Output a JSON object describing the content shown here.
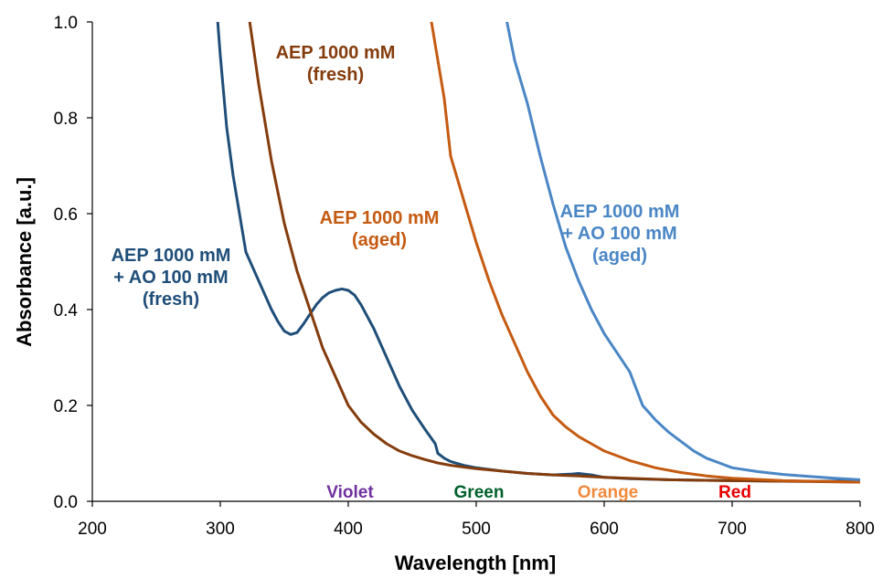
{
  "chart_data": {
    "type": "line",
    "xlabel": "Wavelength [nm]",
    "ylabel": "Absorbance [a.u.]",
    "xlim": [
      200,
      800
    ],
    "ylim": [
      0,
      1.0
    ],
    "x_ticks": [
      "200",
      "300",
      "400",
      "500",
      "600",
      "700",
      "800"
    ],
    "y_ticks": [
      "0.0",
      "0.2",
      "0.4",
      "0.6",
      "0.8",
      "1.0"
    ],
    "grid": false,
    "legend": "none",
    "series": [
      {
        "name": "AEP 1000 mM + AO 100 mM (fresh)",
        "color": "#1F4E79",
        "points": [
          [
            298,
            1.0
          ],
          [
            300,
            0.93
          ],
          [
            305,
            0.78
          ],
          [
            310,
            0.68
          ],
          [
            315,
            0.6
          ],
          [
            320,
            0.52
          ],
          [
            325,
            0.49
          ],
          [
            330,
            0.46
          ],
          [
            335,
            0.43
          ],
          [
            340,
            0.4
          ],
          [
            345,
            0.375
          ],
          [
            350,
            0.355
          ],
          [
            355,
            0.348
          ],
          [
            360,
            0.352
          ],
          [
            365,
            0.37
          ],
          [
            370,
            0.39
          ],
          [
            375,
            0.41
          ],
          [
            380,
            0.425
          ],
          [
            385,
            0.435
          ],
          [
            390,
            0.44
          ],
          [
            395,
            0.443
          ],
          [
            400,
            0.44
          ],
          [
            405,
            0.43
          ],
          [
            410,
            0.41
          ],
          [
            420,
            0.36
          ],
          [
            430,
            0.3
          ],
          [
            440,
            0.24
          ],
          [
            450,
            0.19
          ],
          [
            460,
            0.15
          ],
          [
            468,
            0.12
          ],
          [
            470,
            0.1
          ],
          [
            475,
            0.09
          ],
          [
            480,
            0.083
          ],
          [
            490,
            0.075
          ],
          [
            500,
            0.07
          ],
          [
            520,
            0.063
          ],
          [
            540,
            0.058
          ],
          [
            560,
            0.055
          ],
          [
            575,
            0.057
          ],
          [
            580,
            0.058
          ],
          [
            590,
            0.055
          ],
          [
            600,
            0.05
          ],
          [
            620,
            0.047
          ],
          [
            650,
            0.045
          ],
          [
            700,
            0.043
          ],
          [
            750,
            0.042
          ],
          [
            800,
            0.042
          ]
        ]
      },
      {
        "name": "AEP 1000 mM (fresh)",
        "color": "#843C0C",
        "points": [
          [
            323,
            1.0
          ],
          [
            330,
            0.87
          ],
          [
            340,
            0.71
          ],
          [
            350,
            0.58
          ],
          [
            360,
            0.48
          ],
          [
            370,
            0.4
          ],
          [
            380,
            0.32
          ],
          [
            390,
            0.26
          ],
          [
            400,
            0.2
          ],
          [
            410,
            0.165
          ],
          [
            420,
            0.14
          ],
          [
            430,
            0.12
          ],
          [
            440,
            0.105
          ],
          [
            450,
            0.095
          ],
          [
            460,
            0.087
          ],
          [
            470,
            0.08
          ],
          [
            480,
            0.075
          ],
          [
            500,
            0.068
          ],
          [
            520,
            0.063
          ],
          [
            540,
            0.058
          ],
          [
            560,
            0.055
          ],
          [
            580,
            0.053
          ],
          [
            600,
            0.05
          ],
          [
            650,
            0.045
          ],
          [
            700,
            0.043
          ],
          [
            800,
            0.04
          ]
        ]
      },
      {
        "name": "AEP 1000 mM (aged)",
        "color": "#C55A11",
        "points": [
          [
            465,
            1.0
          ],
          [
            470,
            0.92
          ],
          [
            475,
            0.84
          ],
          [
            480,
            0.72
          ],
          [
            490,
            0.63
          ],
          [
            500,
            0.54
          ],
          [
            510,
            0.46
          ],
          [
            520,
            0.39
          ],
          [
            530,
            0.33
          ],
          [
            540,
            0.27
          ],
          [
            550,
            0.22
          ],
          [
            560,
            0.18
          ],
          [
            570,
            0.155
          ],
          [
            580,
            0.135
          ],
          [
            590,
            0.12
          ],
          [
            600,
            0.105
          ],
          [
            610,
            0.095
          ],
          [
            620,
            0.085
          ],
          [
            640,
            0.07
          ],
          [
            660,
            0.06
          ],
          [
            680,
            0.053
          ],
          [
            700,
            0.048
          ],
          [
            740,
            0.043
          ],
          [
            800,
            0.04
          ]
        ]
      },
      {
        "name": "AEP 1000 mM + AO 100 mM (aged)",
        "color": "#4A86C5",
        "points": [
          [
            524,
            1.0
          ],
          [
            530,
            0.92
          ],
          [
            540,
            0.83
          ],
          [
            550,
            0.72
          ],
          [
            560,
            0.62
          ],
          [
            570,
            0.53
          ],
          [
            580,
            0.46
          ],
          [
            590,
            0.4
          ],
          [
            600,
            0.35
          ],
          [
            610,
            0.31
          ],
          [
            620,
            0.27
          ],
          [
            630,
            0.2
          ],
          [
            640,
            0.17
          ],
          [
            650,
            0.145
          ],
          [
            660,
            0.125
          ],
          [
            670,
            0.105
          ],
          [
            680,
            0.09
          ],
          [
            690,
            0.08
          ],
          [
            700,
            0.07
          ],
          [
            720,
            0.062
          ],
          [
            740,
            0.056
          ],
          [
            760,
            0.052
          ],
          [
            780,
            0.048
          ],
          [
            800,
            0.045
          ]
        ]
      }
    ],
    "annotations": [
      {
        "lines": [
          "AEP 1000 mM",
          "(fresh)"
        ],
        "color": "#843C0C"
      },
      {
        "lines": [
          "AEP 1000 mM",
          "(aged)"
        ],
        "color": "#C55A11"
      },
      {
        "lines": [
          "AEP 1000 mM",
          "+ AO 100 mM",
          "(aged)"
        ],
        "color": "#4A86C5"
      },
      {
        "lines": [
          "AEP 1000 mM",
          "+ AO 100 mM",
          "(fresh)"
        ],
        "color": "#1F4E79"
      }
    ],
    "color_bands": [
      {
        "label": "Violet",
        "color": "#7030A0"
      },
      {
        "label": "Green",
        "color": "#00602B"
      },
      {
        "label": "Orange",
        "color": "#F08A3C"
      },
      {
        "label": "Red",
        "color": "#E60000"
      }
    ]
  }
}
